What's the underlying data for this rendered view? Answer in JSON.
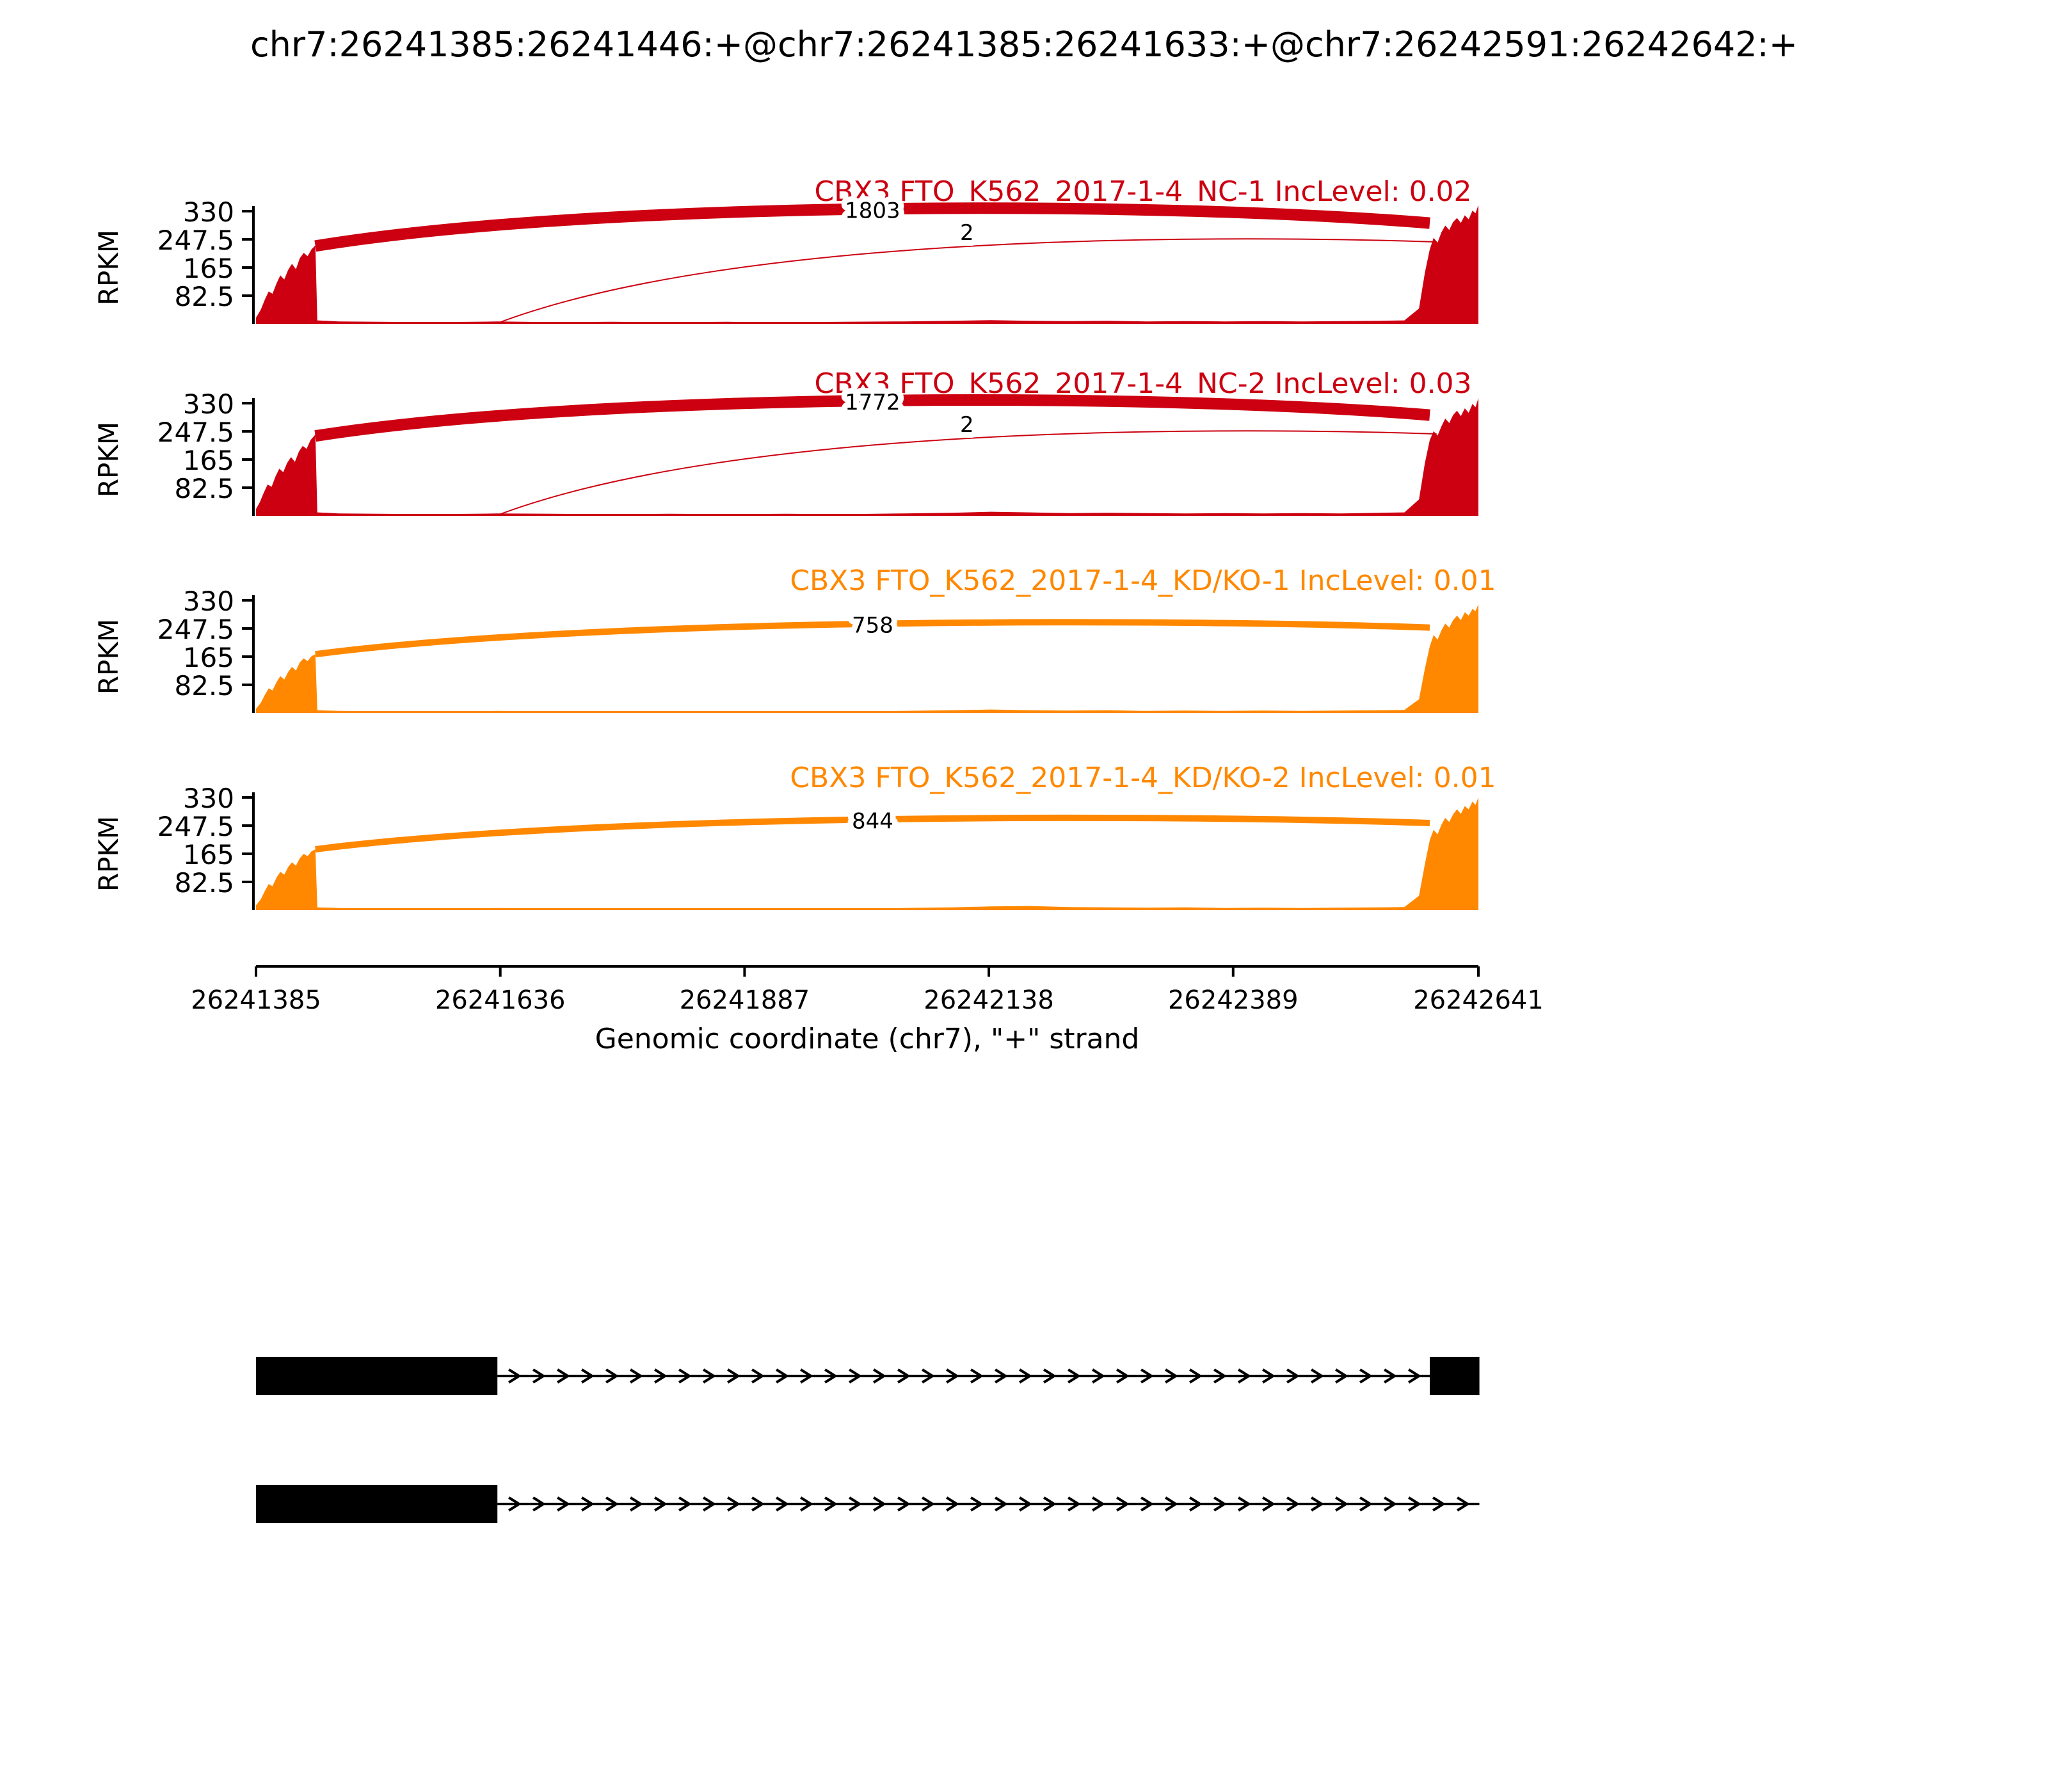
{
  "title": "chr7:26241385:26241446:+@chr7:26241385:26241633:+@chr7:26242591:26242642:+",
  "chart_data": {
    "type": "sashimi-coverage",
    "title": "chr7:26241385:26241446:+@chr7:26241385:26241633:+@chr7:26242591:26242642:+",
    "xlabel": "Genomic coordinate (chr7), \"+\" strand",
    "ylabel": "RPKM",
    "x_domain": [
      26241385,
      26242641
    ],
    "x_ticks": [
      "26241385",
      "26241636",
      "26241887",
      "26242138",
      "26242389",
      "26242641"
    ],
    "y_ticks": [
      330,
      247.5,
      165,
      82.5
    ],
    "colors": {
      "nc": "#CC0011",
      "kd": "#FF8800",
      "gene": "#000000"
    },
    "tracks": [
      {
        "label": "CBX3 FTO_K562_2017-1-4_NC-1 IncLevel: 0.02",
        "color": "#CC0011",
        "coverage": [
          [
            26241385,
            18
          ],
          [
            26241390,
            42
          ],
          [
            26241394,
            70
          ],
          [
            26241398,
            95
          ],
          [
            26241402,
            88
          ],
          [
            26241406,
            118
          ],
          [
            26241410,
            142
          ],
          [
            26241414,
            130
          ],
          [
            26241418,
            158
          ],
          [
            26241422,
            176
          ],
          [
            26241426,
            160
          ],
          [
            26241430,
            192
          ],
          [
            26241434,
            208
          ],
          [
            26241438,
            198
          ],
          [
            26241442,
            218
          ],
          [
            26241446,
            230
          ],
          [
            26241448,
            10
          ],
          [
            26241470,
            7
          ],
          [
            26241510,
            6
          ],
          [
            26241560,
            5
          ],
          [
            26241610,
            6
          ],
          [
            26241633,
            7
          ],
          [
            26241690,
            5
          ],
          [
            26241750,
            6
          ],
          [
            26241810,
            5
          ],
          [
            26241870,
            6
          ],
          [
            26241930,
            5
          ],
          [
            26241990,
            6
          ],
          [
            26242050,
            7
          ],
          [
            26242100,
            9
          ],
          [
            26242140,
            11
          ],
          [
            26242180,
            9
          ],
          [
            26242220,
            8
          ],
          [
            26242260,
            9
          ],
          [
            26242300,
            7
          ],
          [
            26242340,
            8
          ],
          [
            26242380,
            7
          ],
          [
            26242420,
            8
          ],
          [
            26242460,
            7
          ],
          [
            26242500,
            8
          ],
          [
            26242540,
            9
          ],
          [
            26242565,
            10
          ],
          [
            26242580,
            45
          ],
          [
            26242586,
            150
          ],
          [
            26242591,
            218
          ],
          [
            26242595,
            252
          ],
          [
            26242599,
            238
          ],
          [
            26242603,
            268
          ],
          [
            26242607,
            288
          ],
          [
            26242611,
            275
          ],
          [
            26242615,
            298
          ],
          [
            26242619,
            310
          ],
          [
            26242623,
            296
          ],
          [
            26242627,
            318
          ],
          [
            26242631,
            306
          ],
          [
            26242635,
            332
          ],
          [
            26242638,
            324
          ],
          [
            26242641,
            348
          ]
        ],
        "junctions": [
          {
            "count": "1803",
            "x1": 26241446,
            "y1": 228,
            "x2": 26242591,
            "y2": 295,
            "apex": 362,
            "width": 9,
            "label_dy": 7
          },
          {
            "count": "2",
            "x1": 26241633,
            "y1": 2,
            "x2": 26242598,
            "y2": 240,
            "apex": 262,
            "width": 1,
            "label_dy": -5
          }
        ]
      },
      {
        "label": "CBX3 FTO_K562_2017-1-4_NC-2 IncLevel: 0.03",
        "color": "#CC0011",
        "coverage": [
          [
            26241385,
            20
          ],
          [
            26241389,
            40
          ],
          [
            26241393,
            68
          ],
          [
            26241397,
            92
          ],
          [
            26241401,
            85
          ],
          [
            26241405,
            115
          ],
          [
            26241409,
            138
          ],
          [
            26241413,
            128
          ],
          [
            26241417,
            155
          ],
          [
            26241421,
            172
          ],
          [
            26241425,
            158
          ],
          [
            26241429,
            188
          ],
          [
            26241433,
            205
          ],
          [
            26241437,
            196
          ],
          [
            26241441,
            222
          ],
          [
            26241446,
            238
          ],
          [
            26241448,
            10
          ],
          [
            26241470,
            7
          ],
          [
            26241510,
            6
          ],
          [
            26241560,
            5
          ],
          [
            26241610,
            6
          ],
          [
            26241633,
            7
          ],
          [
            26241690,
            6
          ],
          [
            26241750,
            5
          ],
          [
            26241810,
            6
          ],
          [
            26241870,
            5
          ],
          [
            26241930,
            6
          ],
          [
            26241990,
            5
          ],
          [
            26242050,
            7
          ],
          [
            26242100,
            9
          ],
          [
            26242140,
            12
          ],
          [
            26242180,
            10
          ],
          [
            26242220,
            8
          ],
          [
            26242260,
            9
          ],
          [
            26242300,
            8
          ],
          [
            26242340,
            7
          ],
          [
            26242380,
            8
          ],
          [
            26242420,
            7
          ],
          [
            26242460,
            8
          ],
          [
            26242500,
            7
          ],
          [
            26242540,
            9
          ],
          [
            26242565,
            10
          ],
          [
            26242580,
            48
          ],
          [
            26242586,
            155
          ],
          [
            26242591,
            222
          ],
          [
            26242595,
            248
          ],
          [
            26242599,
            235
          ],
          [
            26242603,
            262
          ],
          [
            26242607,
            285
          ],
          [
            26242611,
            272
          ],
          [
            26242615,
            295
          ],
          [
            26242619,
            308
          ],
          [
            26242623,
            292
          ],
          [
            26242627,
            315
          ],
          [
            26242631,
            302
          ],
          [
            26242635,
            328
          ],
          [
            26242638,
            318
          ],
          [
            26242641,
            345
          ]
        ],
        "junctions": [
          {
            "count": "1772",
            "x1": 26241446,
            "y1": 234,
            "x2": 26242591,
            "y2": 295,
            "apex": 362,
            "width": 9,
            "label_dy": 7
          },
          {
            "count": "2",
            "x1": 26241633,
            "y1": 2,
            "x2": 26242598,
            "y2": 240,
            "apex": 262,
            "width": 1,
            "label_dy": -5
          }
        ]
      },
      {
        "label": "CBX3 FTO_K562_2017-1-4_KD/KO-1 IncLevel: 0.01",
        "color": "#FF8800",
        "coverage": [
          [
            26241385,
            12
          ],
          [
            26241390,
            30
          ],
          [
            26241394,
            52
          ],
          [
            26241398,
            72
          ],
          [
            26241402,
            66
          ],
          [
            26241406,
            90
          ],
          [
            26241410,
            108
          ],
          [
            26241414,
            98
          ],
          [
            26241418,
            120
          ],
          [
            26241422,
            135
          ],
          [
            26241426,
            124
          ],
          [
            26241430,
            148
          ],
          [
            26241434,
            160
          ],
          [
            26241438,
            152
          ],
          [
            26241442,
            166
          ],
          [
            26241446,
            172
          ],
          [
            26241448,
            8
          ],
          [
            26241470,
            6
          ],
          [
            26241510,
            5
          ],
          [
            26241560,
            4
          ],
          [
            26241610,
            5
          ],
          [
            26241633,
            6
          ],
          [
            26241690,
            4
          ],
          [
            26241750,
            5
          ],
          [
            26241810,
            4
          ],
          [
            26241870,
            5
          ],
          [
            26241930,
            4
          ],
          [
            26241990,
            5
          ],
          [
            26242050,
            6
          ],
          [
            26242100,
            8
          ],
          [
            26242140,
            10
          ],
          [
            26242180,
            8
          ],
          [
            26242220,
            7
          ],
          [
            26242260,
            8
          ],
          [
            26242300,
            6
          ],
          [
            26242340,
            7
          ],
          [
            26242380,
            6
          ],
          [
            26242420,
            7
          ],
          [
            26242460,
            6
          ],
          [
            26242500,
            7
          ],
          [
            26242540,
            8
          ],
          [
            26242565,
            9
          ],
          [
            26242580,
            40
          ],
          [
            26242586,
            130
          ],
          [
            26242591,
            195
          ],
          [
            26242595,
            228
          ],
          [
            26242599,
            215
          ],
          [
            26242603,
            242
          ],
          [
            26242607,
            262
          ],
          [
            26242611,
            250
          ],
          [
            26242615,
            272
          ],
          [
            26242619,
            285
          ],
          [
            26242623,
            272
          ],
          [
            26242627,
            295
          ],
          [
            26242631,
            285
          ],
          [
            26242635,
            305
          ],
          [
            26242638,
            298
          ],
          [
            26242641,
            318
          ]
        ],
        "junctions": [
          {
            "count": "758",
            "x1": 26241446,
            "y1": 172,
            "x2": 26242591,
            "y2": 250,
            "apex": 278,
            "width": 5,
            "label_dy": 7
          }
        ]
      },
      {
        "label": "CBX3 FTO_K562_2017-1-4_KD/KO-2 IncLevel: 0.01",
        "color": "#FF8800",
        "coverage": [
          [
            26241385,
            14
          ],
          [
            26241390,
            32
          ],
          [
            26241394,
            55
          ],
          [
            26241398,
            76
          ],
          [
            26241402,
            70
          ],
          [
            26241406,
            95
          ],
          [
            26241410,
            112
          ],
          [
            26241414,
            104
          ],
          [
            26241418,
            126
          ],
          [
            26241422,
            140
          ],
          [
            26241426,
            130
          ],
          [
            26241430,
            152
          ],
          [
            26241434,
            165
          ],
          [
            26241438,
            158
          ],
          [
            26241442,
            172
          ],
          [
            26241446,
            178
          ],
          [
            26241448,
            8
          ],
          [
            26241470,
            6
          ],
          [
            26241510,
            5
          ],
          [
            26241560,
            4
          ],
          [
            26241610,
            5
          ],
          [
            26241633,
            6
          ],
          [
            26241690,
            5
          ],
          [
            26241750,
            4
          ],
          [
            26241810,
            5
          ],
          [
            26241870,
            4
          ],
          [
            26241930,
            5
          ],
          [
            26241990,
            4
          ],
          [
            26242050,
            6
          ],
          [
            26242100,
            8
          ],
          [
            26242140,
            11
          ],
          [
            26242180,
            12
          ],
          [
            26242220,
            9
          ],
          [
            26242260,
            8
          ],
          [
            26242300,
            7
          ],
          [
            26242340,
            8
          ],
          [
            26242380,
            6
          ],
          [
            26242420,
            7
          ],
          [
            26242460,
            6
          ],
          [
            26242500,
            7
          ],
          [
            26242540,
            8
          ],
          [
            26242565,
            9
          ],
          [
            26242580,
            42
          ],
          [
            26242586,
            135
          ],
          [
            26242591,
            205
          ],
          [
            26242595,
            235
          ],
          [
            26242599,
            222
          ],
          [
            26242603,
            250
          ],
          [
            26242607,
            270
          ],
          [
            26242611,
            258
          ],
          [
            26242615,
            280
          ],
          [
            26242619,
            295
          ],
          [
            26242623,
            282
          ],
          [
            26242627,
            305
          ],
          [
            26242631,
            295
          ],
          [
            26242635,
            318
          ],
          [
            26242638,
            308
          ],
          [
            26242641,
            330
          ]
        ],
        "junctions": [
          {
            "count": "844",
            "x1": 26241446,
            "y1": 178,
            "x2": 26242591,
            "y2": 255,
            "apex": 282,
            "width": 5,
            "label_dy": 7
          }
        ]
      }
    ],
    "isoforms": [
      {
        "exons": [
          [
            26241385,
            26241633
          ],
          [
            26242591,
            26242642
          ]
        ],
        "line": [
          26241633,
          26242591
        ]
      },
      {
        "exons": [
          [
            26241385,
            26241633
          ]
        ],
        "line": [
          26241633,
          26242642
        ]
      }
    ]
  }
}
